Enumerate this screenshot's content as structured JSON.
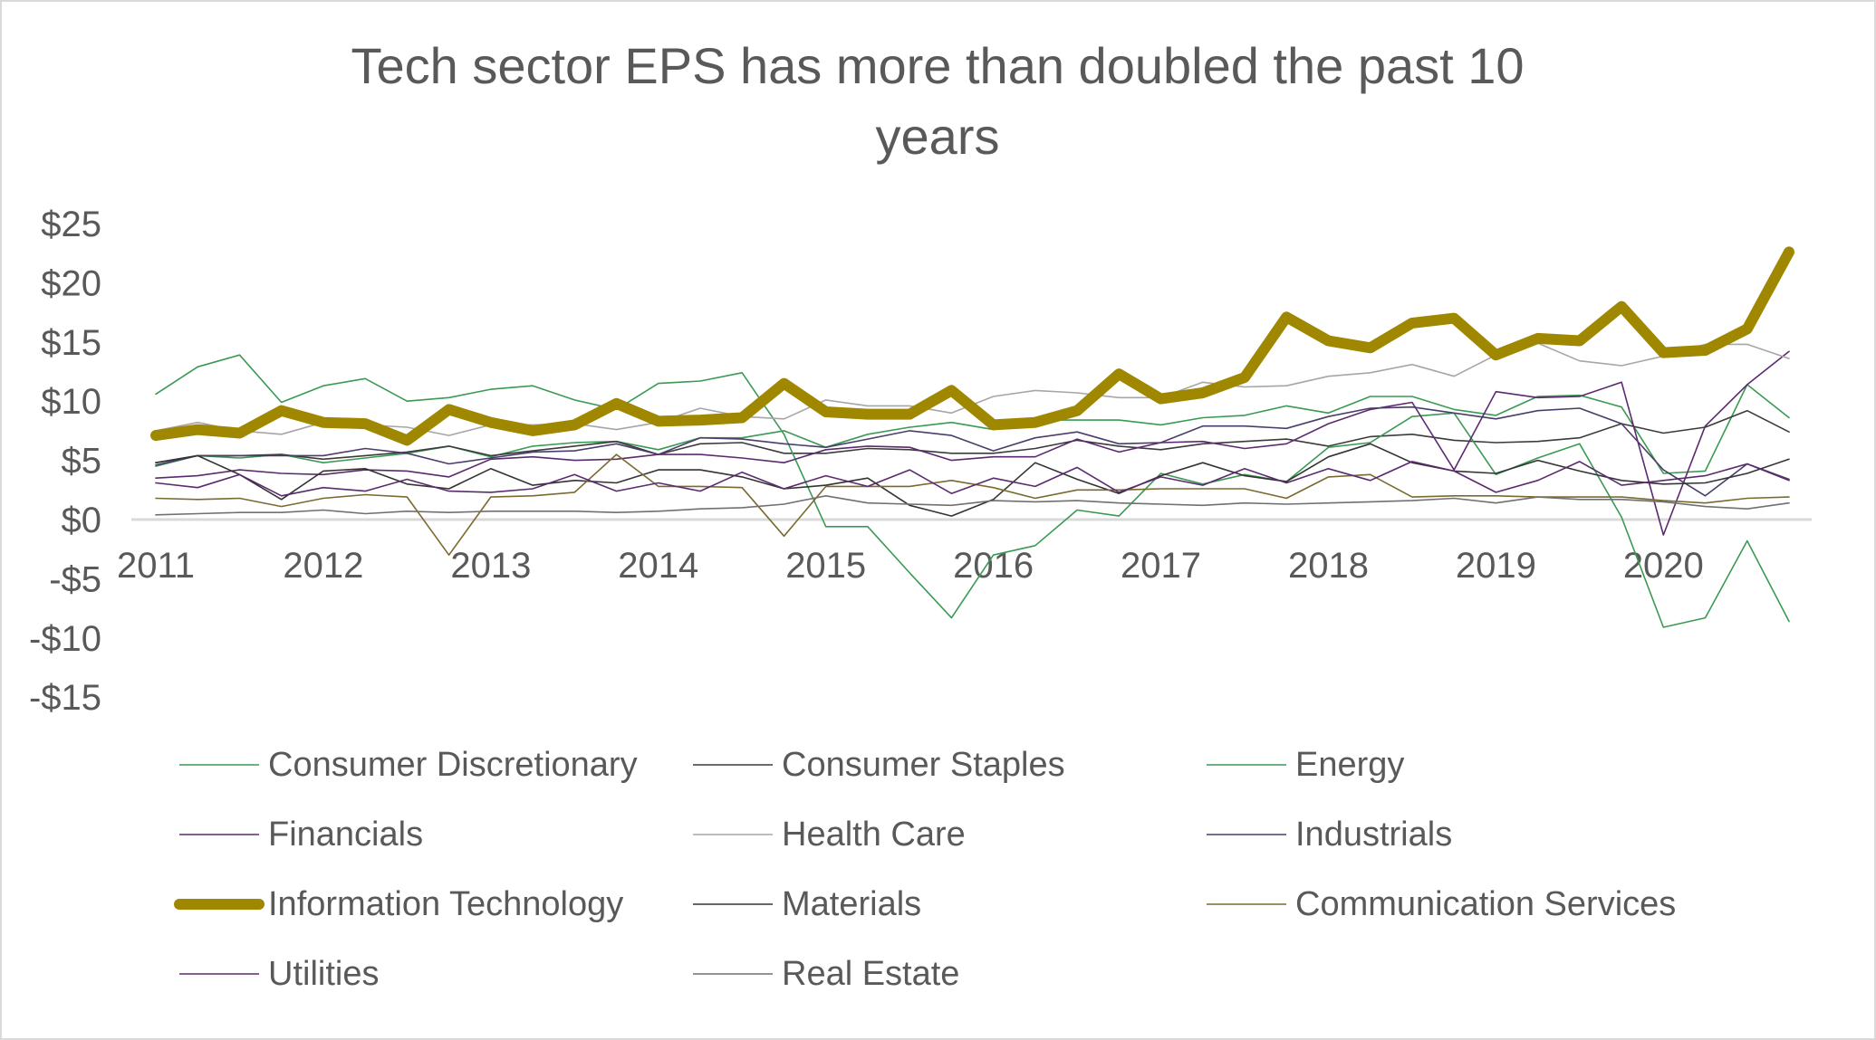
{
  "chart_data": {
    "type": "line",
    "title": "Tech sector EPS has more than doubled the past 10 years",
    "title_lines": [
      "Tech sector EPS has more than doubled the past 10",
      "years"
    ],
    "xlabel": "",
    "ylabel": "",
    "ylim": [
      -15,
      25
    ],
    "y_ticks": [
      25,
      20,
      15,
      10,
      5,
      0,
      -5,
      -10,
      -15
    ],
    "y_tick_labels": [
      "$25",
      "$20",
      "$15",
      "$10",
      "$5",
      "$0",
      "-$5",
      "-$10",
      "-$15"
    ],
    "x_tick_labels": [
      "2011",
      "2012",
      "2013",
      "2014",
      "2015",
      "2016",
      "2017",
      "2018",
      "2019",
      "2020"
    ],
    "x_tick_every": 4,
    "n_points": 40,
    "grid": false,
    "zero_line": true,
    "legend_position": "bottom",
    "series": [
      {
        "name": "Consumer Discretionary",
        "color": "#3a9a54",
        "width": "thin",
        "values": [
          4.5,
          5.4,
          5.2,
          5.5,
          4.8,
          5.2,
          5.6,
          6.2,
          5.3,
          6.2,
          6.5,
          6.6,
          5.9,
          6.9,
          6.9,
          7.5,
          6.1,
          7.2,
          7.8,
          8.2,
          7.6,
          8.4,
          8.4,
          8.4,
          8.0,
          8.6,
          8.8,
          9.6,
          9.0,
          10.4,
          10.4,
          9.3,
          8.8,
          10.4,
          10.5,
          9.5,
          3.9,
          4.1,
          11.4,
          8.6
        ]
      },
      {
        "name": "Consumer Staples",
        "color": "#3b3b3b",
        "width": "thin",
        "values": [
          4.8,
          5.4,
          5.4,
          5.5,
          5.1,
          5.4,
          5.7,
          6.2,
          5.4,
          5.8,
          6.2,
          6.6,
          5.5,
          6.4,
          6.5,
          5.6,
          5.6,
          6.0,
          5.9,
          5.6,
          5.6,
          6.0,
          6.7,
          6.2,
          5.9,
          6.4,
          6.6,
          6.8,
          6.2,
          7.0,
          7.2,
          6.7,
          6.5,
          6.6,
          6.9,
          8.1,
          7.3,
          7.8,
          9.2,
          7.4
        ]
      },
      {
        "name": "Energy",
        "color": "#3a9a54",
        "width": "thin",
        "values": [
          10.6,
          12.9,
          13.9,
          9.9,
          11.3,
          11.9,
          10.0,
          10.3,
          11.0,
          11.3,
          10.1,
          9.3,
          11.5,
          11.7,
          12.4,
          7.2,
          -0.6,
          -0.6,
          -4.5,
          -8.3,
          -3.0,
          -2.2,
          0.8,
          0.3,
          3.9,
          3.0,
          3.8,
          3.2,
          6.1,
          6.5,
          8.7,
          9.0,
          3.8,
          5.2,
          6.4,
          0.2,
          -9.1,
          -8.3,
          -1.8,
          -8.6
        ]
      },
      {
        "name": "Financials",
        "color": "#5b2a6e",
        "width": "thin",
        "values": [
          3.5,
          3.7,
          4.2,
          3.9,
          3.8,
          4.2,
          4.1,
          3.6,
          5.1,
          5.3,
          5.0,
          5.1,
          5.5,
          5.5,
          5.2,
          4.8,
          5.9,
          6.2,
          6.1,
          5.0,
          5.3,
          5.3,
          6.8,
          5.7,
          6.5,
          6.6,
          6.0,
          6.4,
          8.1,
          9.3,
          9.9,
          4.2,
          10.8,
          10.3,
          10.4,
          11.6,
          -1.3,
          7.9,
          11.4,
          14.2
        ]
      },
      {
        "name": "Health Care",
        "color": "#a6a6a6",
        "width": "thin",
        "values": [
          7.5,
          8.2,
          7.5,
          7.2,
          8.2,
          8.0,
          7.8,
          7.1,
          8.0,
          8.0,
          8.1,
          7.6,
          8.2,
          9.4,
          8.7,
          8.5,
          10.1,
          9.6,
          9.6,
          9.0,
          10.4,
          10.9,
          10.7,
          10.3,
          10.3,
          11.6,
          11.2,
          11.3,
          12.1,
          12.4,
          13.1,
          12.1,
          13.9,
          14.9,
          13.4,
          13.0,
          13.8,
          14.8,
          14.8,
          13.6
        ]
      },
      {
        "name": "Industrials",
        "color": "#4a3d6b",
        "width": "thin",
        "values": [
          4.6,
          5.4,
          5.4,
          5.4,
          5.4,
          6.0,
          5.6,
          4.7,
          5.2,
          5.7,
          5.8,
          6.4,
          5.5,
          6.9,
          6.8,
          6.4,
          6.1,
          6.8,
          7.5,
          7.1,
          5.8,
          6.9,
          7.4,
          6.4,
          6.5,
          7.9,
          7.9,
          7.7,
          8.7,
          9.4,
          9.5,
          9.0,
          8.5,
          9.2,
          9.4,
          8.1,
          4.2,
          2.0,
          4.7,
          3.4
        ]
      },
      {
        "name": "Information Technology",
        "color": "#a08700",
        "width": "thick",
        "values": [
          7.1,
          7.6,
          7.3,
          9.2,
          8.2,
          8.1,
          6.7,
          9.3,
          8.2,
          7.5,
          8.0,
          9.8,
          8.3,
          8.4,
          8.6,
          11.5,
          9.1,
          8.9,
          8.9,
          10.9,
          8.0,
          8.2,
          9.2,
          12.3,
          10.2,
          10.7,
          12.0,
          17.1,
          15.1,
          14.5,
          16.6,
          17.0,
          13.9,
          15.3,
          15.1,
          18.0,
          14.1,
          14.3,
          16.1,
          22.6
        ]
      },
      {
        "name": "Materials",
        "color": "#333333",
        "width": "thin",
        "values": [
          4.8,
          5.4,
          3.8,
          1.7,
          4.1,
          4.3,
          3.0,
          2.6,
          4.3,
          2.9,
          3.3,
          3.1,
          4.2,
          4.2,
          3.6,
          2.6,
          2.9,
          3.5,
          1.2,
          0.3,
          1.7,
          4.8,
          3.4,
          2.2,
          3.7,
          4.8,
          3.7,
          3.2,
          5.3,
          6.4,
          4.8,
          4.1,
          3.9,
          5.0,
          4.1,
          3.3,
          3.0,
          3.1,
          3.9,
          5.1
        ]
      },
      {
        "name": "Communication Services",
        "color": "#7a6a30",
        "width": "thin",
        "values": [
          1.8,
          1.7,
          1.8,
          1.1,
          1.8,
          2.1,
          1.9,
          -3.0,
          1.9,
          2.0,
          2.3,
          5.5,
          2.8,
          2.8,
          2.7,
          -1.4,
          2.8,
          2.8,
          2.8,
          3.3,
          2.7,
          1.8,
          2.5,
          2.5,
          2.6,
          2.6,
          2.6,
          1.8,
          3.6,
          3.8,
          1.9,
          2.0,
          2.0,
          1.9,
          1.9,
          1.9,
          1.6,
          1.4,
          1.8,
          1.9
        ]
      },
      {
        "name": "Utilities",
        "color": "#5b2a6e",
        "width": "thin",
        "values": [
          3.1,
          2.7,
          3.8,
          2.0,
          2.7,
          2.4,
          3.4,
          2.4,
          2.3,
          2.6,
          3.8,
          2.4,
          3.1,
          2.4,
          4.0,
          2.6,
          3.7,
          2.8,
          4.2,
          2.2,
          3.5,
          2.8,
          4.4,
          2.3,
          3.6,
          2.9,
          4.3,
          3.1,
          4.3,
          3.3,
          4.9,
          4.1,
          2.3,
          3.3,
          4.9,
          2.9,
          3.3,
          3.7,
          4.7,
          3.3
        ]
      },
      {
        "name": "Real Estate",
        "color": "#707070",
        "width": "thin",
        "values": [
          0.4,
          0.5,
          0.6,
          0.6,
          0.8,
          0.5,
          0.7,
          0.6,
          0.7,
          0.7,
          0.7,
          0.6,
          0.7,
          0.9,
          1.0,
          1.3,
          2.0,
          1.4,
          1.3,
          1.2,
          1.6,
          1.5,
          1.6,
          1.4,
          1.3,
          1.2,
          1.4,
          1.3,
          1.4,
          1.5,
          1.6,
          1.8,
          1.4,
          1.9,
          1.7,
          1.7,
          1.5,
          1.1,
          0.9,
          1.4
        ]
      }
    ]
  }
}
